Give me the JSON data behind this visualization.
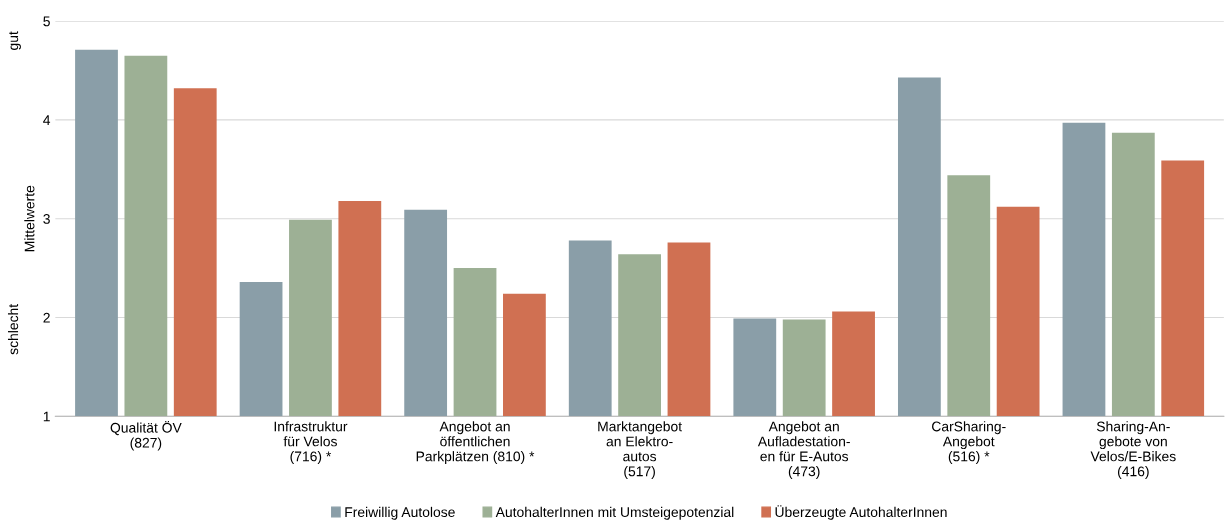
{
  "chart_data": {
    "type": "bar",
    "ylabel": "Mittelwerte",
    "annotations": [
      "gut",
      "schlecht"
    ],
    "categories": [
      "Qualität ÖV\n(827)",
      "Infrastruktur\nfür Velos\n(716) *",
      "Angebot an\nöffentlichen\nParkplätzen (810) *",
      "Marktangebot\nan Elektro-\nautos\n(517)",
      "Angebot an\nAufladestation-\nen für E-Autos\n(473)",
      "CarSharing-\nAngebot\n(516) *",
      "Sharing-An-\ngebote von\nVelos/E-Bikes\n(416)"
    ],
    "series": [
      {
        "name": "Freiwillig Autolose",
        "color": "#8a9ea8",
        "values": [
          4.71,
          2.36,
          3.09,
          2.78,
          1.99,
          4.43,
          3.97
        ]
      },
      {
        "name": "AutohalterInnen mit Umsteigepotenzial",
        "color": "#9db095",
        "values": [
          4.65,
          2.99,
          2.5,
          2.64,
          1.98,
          3.44,
          3.87
        ]
      },
      {
        "name": "Überzeugte AutohalterInnen",
        "color": "#d07052",
        "values": [
          4.32,
          3.18,
          2.24,
          2.76,
          2.06,
          3.12,
          3.59
        ]
      }
    ],
    "ylim": [
      1,
      5
    ],
    "yticks": [
      1,
      2,
      3,
      4,
      5
    ],
    "grid": "y",
    "legend": "bottom"
  }
}
